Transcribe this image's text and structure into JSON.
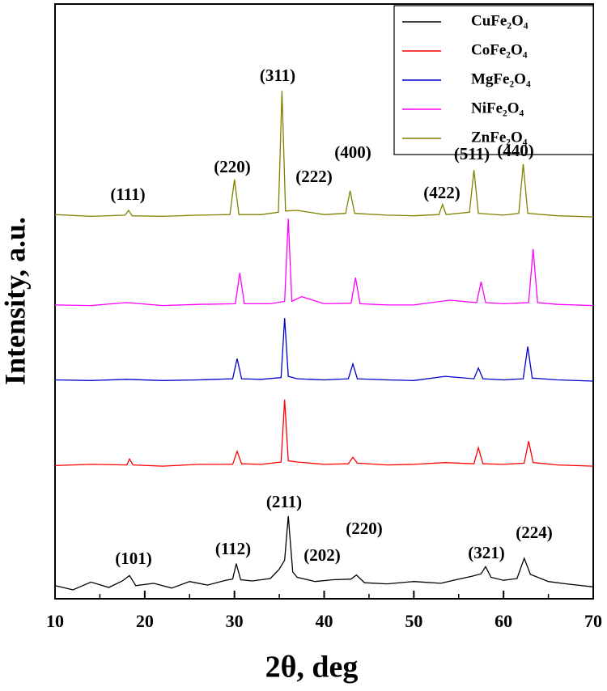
{
  "chart_data": {
    "type": "line",
    "x_label": "2θ, deg",
    "y_label": "Intensity, a.u.",
    "xlim": [
      10,
      70
    ],
    "xticks": [
      10,
      20,
      30,
      40,
      50,
      60,
      70
    ],
    "ylim": [
      0,
      100
    ],
    "legend": "upper right",
    "series": [
      {
        "name": "CuFe₂O₄",
        "color": "#000000",
        "x": [
          10,
          12,
          14,
          16,
          17.5,
          18.3,
          19,
          21,
          23,
          25,
          27,
          29,
          29.8,
          30.2,
          30.7,
          32,
          34,
          35,
          35.6,
          36,
          36.5,
          37,
          39,
          41,
          43,
          43.6,
          44.5,
          47,
          50,
          53,
          55,
          56.5,
          57.5,
          58,
          58.6,
          60,
          61.5,
          62.3,
          63,
          65,
          67,
          70
        ],
        "values": [
          2.2,
          1.5,
          2.8,
          1.9,
          3.0,
          3.9,
          2.2,
          2.6,
          1.8,
          2.9,
          2.3,
          3.1,
          3.3,
          5.9,
          3.2,
          3.0,
          3.4,
          5.0,
          6.5,
          13.9,
          4.5,
          3.6,
          2.9,
          3.2,
          3.3,
          4.0,
          2.7,
          2.5,
          2.9,
          2.6,
          3.3,
          3.8,
          4.2,
          5.4,
          3.6,
          3.1,
          3.4,
          6.8,
          4.1,
          2.9,
          2.5,
          2.0
        ]
      },
      {
        "name": "CoFe₂O₄",
        "color": "#ff0000",
        "x": [
          10,
          14,
          18,
          18.3,
          18.7,
          22,
          26,
          29.8,
          30.3,
          30.8,
          33,
          35.2,
          35.6,
          36.0,
          37,
          40,
          42.7,
          43.2,
          43.7,
          47,
          50,
          53.5,
          56.7,
          57.2,
          57.7,
          60,
          62.3,
          62.8,
          63.3,
          66,
          70
        ],
        "values": [
          22.4,
          22.6,
          22.5,
          23.5,
          22.5,
          22.3,
          22.6,
          22.6,
          24.8,
          22.7,
          22.6,
          23.0,
          33.5,
          23.2,
          23.0,
          22.6,
          22.7,
          23.8,
          22.8,
          22.5,
          22.6,
          22.9,
          22.7,
          25.4,
          22.7,
          22.6,
          22.8,
          26.5,
          22.9,
          22.5,
          22.3
        ]
      },
      {
        "name": "MgFe₂O₄",
        "color": "#0000cc",
        "x": [
          10,
          14,
          18,
          22,
          26,
          29.8,
          30.3,
          30.8,
          33,
          35.2,
          35.6,
          36.0,
          37,
          40,
          42.7,
          43.2,
          43.7,
          47,
          50,
          53.5,
          56.7,
          57.2,
          57.7,
          60,
          62.2,
          62.7,
          63.2,
          66,
          70
        ],
        "values": [
          36.8,
          36.7,
          36.9,
          36.7,
          36.8,
          37.0,
          40.4,
          37.0,
          36.9,
          37.2,
          47.2,
          37.4,
          37.0,
          36.8,
          37.0,
          39.5,
          37.0,
          36.8,
          36.7,
          37.4,
          37.0,
          38.8,
          37.0,
          36.8,
          37.0,
          42.4,
          37.1,
          36.8,
          36.6
        ]
      },
      {
        "name": "NiFe₂O₄",
        "color": "#ff00ff",
        "x": [
          10,
          14,
          18,
          22,
          26,
          30.1,
          30.6,
          31.1,
          34,
          35.6,
          36.0,
          36.4,
          37.5,
          40,
          43.0,
          43.5,
          44.0,
          47,
          50,
          54,
          57.0,
          57.5,
          58.0,
          60,
          62.8,
          63.3,
          63.8,
          66,
          70
        ],
        "values": [
          49.4,
          49.3,
          49.8,
          49.3,
          49.5,
          49.6,
          54.8,
          49.6,
          49.6,
          50.0,
          63.9,
          50.0,
          50.8,
          49.6,
          49.7,
          54.0,
          49.6,
          49.4,
          49.4,
          50.2,
          49.8,
          53.3,
          49.8,
          49.6,
          49.8,
          58.8,
          49.8,
          49.5,
          49.3
        ]
      },
      {
        "name": "ZnFe₂O₄",
        "color": "#808000",
        "x": [
          10,
          14,
          17.8,
          18.2,
          18.6,
          22,
          26,
          29.5,
          30.0,
          30.5,
          33,
          34.9,
          35.3,
          35.7,
          37,
          40,
          42.4,
          42.9,
          43.4,
          47,
          50,
          52.8,
          53.2,
          53.6,
          56.2,
          56.7,
          57.2,
          60,
          61.7,
          62.2,
          62.7,
          66,
          70
        ],
        "values": [
          64.6,
          64.3,
          64.5,
          65.3,
          64.4,
          64.3,
          64.5,
          64.6,
          70.5,
          64.6,
          64.6,
          65.0,
          85.4,
          65.2,
          65.3,
          64.6,
          64.8,
          68.6,
          64.8,
          64.5,
          64.4,
          64.6,
          66.3,
          64.6,
          65.0,
          72.1,
          64.8,
          64.5,
          64.8,
          73.1,
          64.8,
          64.4,
          64.2
        ]
      }
    ],
    "annotations": [
      "(111)",
      "(220)",
      "(311)",
      "(222)",
      "(400)",
      "(422)",
      "(511)",
      "(440)",
      "(101)",
      "(112)",
      "(211)",
      "(202)",
      "(220)",
      "(321)",
      "(224)"
    ]
  }
}
